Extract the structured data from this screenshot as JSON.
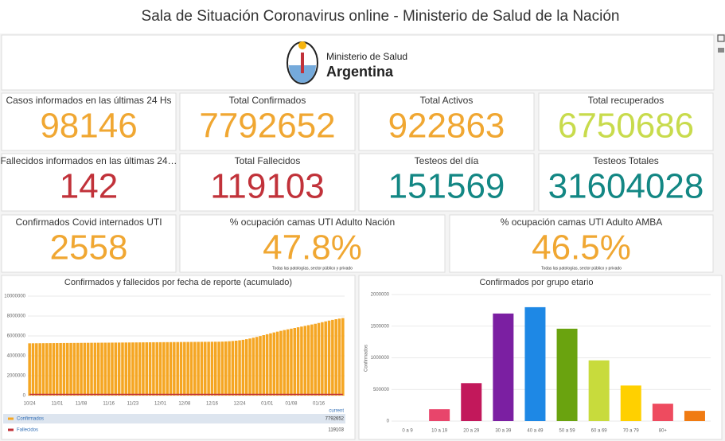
{
  "header": {
    "title": "Sala de Situación Coronavirus online - Ministerio de Salud de la Nación"
  },
  "logo": {
    "line1": "Ministerio de Salud",
    "line2": "Argentina"
  },
  "kpis": [
    {
      "label": "Casos informados en las últimas 24 Hs",
      "value": 98146,
      "color": "#f0a732"
    },
    {
      "label": "Total Confirmados",
      "value": 7792652,
      "color": "#f0a732"
    },
    {
      "label": "Total Activos",
      "value": 922863,
      "color": "#f0a732"
    },
    {
      "label": "Total recuperados",
      "value": 6750686,
      "color": "#c8db4c"
    },
    {
      "label": "Fallecidos informados en las últimas 24…",
      "value": 142,
      "color": "#c1323a"
    },
    {
      "label": "Total Fallecidos",
      "value": 119103,
      "color": "#c1323a"
    },
    {
      "label": "Testeos del día",
      "value": 151569,
      "color": "#138784"
    },
    {
      "label": "Testeos Totales",
      "value": 31604028,
      "color": "#138784"
    },
    {
      "label": "Confirmados Covid internados UTI",
      "value": 2558,
      "color": "#f0a732"
    },
    {
      "label": "% ocupación camas UTI Adulto Nación",
      "value": "47.8%",
      "note": "Todas las patologías, sector público y privado",
      "color": "#f0a732"
    },
    {
      "label": "% ocupación camas UTI Adulto AMBA",
      "value": "46.5%",
      "note": "Todas las patologías, sector público y privado",
      "color": "#f0a732"
    }
  ],
  "chart_data": [
    {
      "type": "bar",
      "title": "Confirmados y fallecidos por fecha de reporte (acumulado)",
      "categories": [
        "10/24",
        null,
        null,
        null,
        null,
        null,
        null,
        null,
        "11/01",
        null,
        null,
        null,
        null,
        null,
        null,
        "11/08",
        null,
        null,
        null,
        null,
        null,
        null,
        null,
        "11/16",
        null,
        null,
        null,
        null,
        null,
        null,
        "11/23",
        null,
        null,
        null,
        null,
        null,
        null,
        null,
        "12/01",
        null,
        null,
        null,
        null,
        null,
        null,
        "12/08",
        null,
        null,
        null,
        null,
        null,
        null,
        null,
        "12/16",
        null,
        null,
        null,
        null,
        null,
        null,
        null,
        "12/24",
        null,
        null,
        null,
        null,
        null,
        null,
        null,
        "01/01",
        null,
        null,
        null,
        null,
        null,
        null,
        "01/08",
        null,
        null,
        null,
        null,
        null,
        null,
        null,
        "01/16",
        null,
        null,
        null,
        null,
        null,
        null,
        null
      ],
      "series": [
        {
          "name": "Confirmados",
          "type": "bar",
          "color": "#f5a623",
          "values": [
            5255000,
            5258000,
            5261000,
            5264000,
            5267000,
            5270000,
            5273000,
            5276000,
            5279000,
            5282000,
            5285000,
            5288000,
            5291000,
            5294000,
            5297000,
            5300000,
            5303000,
            5306000,
            5309000,
            5312000,
            5315000,
            5318000,
            5321000,
            5324000,
            5327000,
            5330000,
            5333000,
            5336000,
            5339000,
            5342000,
            5345000,
            5348000,
            5351000,
            5354000,
            5357000,
            5360000,
            5363000,
            5366000,
            5369000,
            5372000,
            5375000,
            5378000,
            5381000,
            5384000,
            5387000,
            5390000,
            5393000,
            5396000,
            5399000,
            5402000,
            5405000,
            5408000,
            5411000,
            5414000,
            5417000,
            5420000,
            5430000,
            5445000,
            5465000,
            5490000,
            5520000,
            5560000,
            5610000,
            5670000,
            5740000,
            5820000,
            5900000,
            5990000,
            6080000,
            6170000,
            6260000,
            6350000,
            6430000,
            6510000,
            6590000,
            6660000,
            6730000,
            6800000,
            6870000,
            6940000,
            7010000,
            7080000,
            7150000,
            7220000,
            7300000,
            7380000,
            7460000,
            7540000,
            7610000,
            7680000,
            7740000,
            7792652
          ]
        },
        {
          "name": "Fallecidos",
          "type": "line",
          "color": "#c1323a",
          "values": [
            115800,
            115820,
            115840,
            115860,
            115880,
            115900,
            115920,
            115940,
            115960,
            115980,
            116000,
            116020,
            116040,
            116060,
            116080,
            116100,
            116120,
            116140,
            116160,
            116180,
            116200,
            116220,
            116240,
            116260,
            116280,
            116300,
            116320,
            116340,
            116360,
            116380,
            116400,
            116420,
            116440,
            116460,
            116480,
            116500,
            116520,
            116540,
            116560,
            116580,
            116600,
            116620,
            116640,
            116660,
            116680,
            116700,
            116720,
            116740,
            116760,
            116780,
            116800,
            116820,
            116840,
            116860,
            116880,
            116900,
            116920,
            116940,
            116960,
            116980,
            117000,
            117020,
            117090,
            117160,
            117230,
            117300,
            117370,
            117440,
            117510,
            117580,
            117650,
            117720,
            117790,
            117860,
            117930,
            118000,
            118070,
            118140,
            118210,
            118280,
            118350,
            118420,
            118490,
            118560,
            118630,
            118700,
            118770,
            118840,
            118910,
            118980,
            119050,
            119103
          ]
        }
      ],
      "ylim": [
        0,
        10000000
      ],
      "yticks": [
        0,
        2000000,
        4000000,
        6000000,
        8000000,
        10000000
      ],
      "grid": true,
      "legend_header": "current"
    },
    {
      "type": "bar",
      "title": "Confirmados por grupo etario",
      "y_label": "Confirmados",
      "categories": [
        "0 a 9",
        "10 a 19",
        "20 a 29",
        "30 a 39",
        "40 a 49",
        "50 a 59",
        "60 a 69",
        "70 a 79",
        "80+",
        null
      ],
      "values": [
        0,
        187500,
        600000,
        1700000,
        1800000,
        1460000,
        960000,
        562000,
        275000,
        162000
      ],
      "colors": [
        "#3b6fc4",
        "#e8456b",
        "#c2185b",
        "#7b1fa2",
        "#1e88e5",
        "#6aa30f",
        "#c8db3c",
        "#ffd000",
        "#ee4b5f",
        "#f07b12"
      ],
      "ylim": [
        0,
        2000000
      ],
      "yticks": [
        0,
        500000,
        1000000,
        1500000,
        2000000
      ],
      "grid": true
    }
  ]
}
